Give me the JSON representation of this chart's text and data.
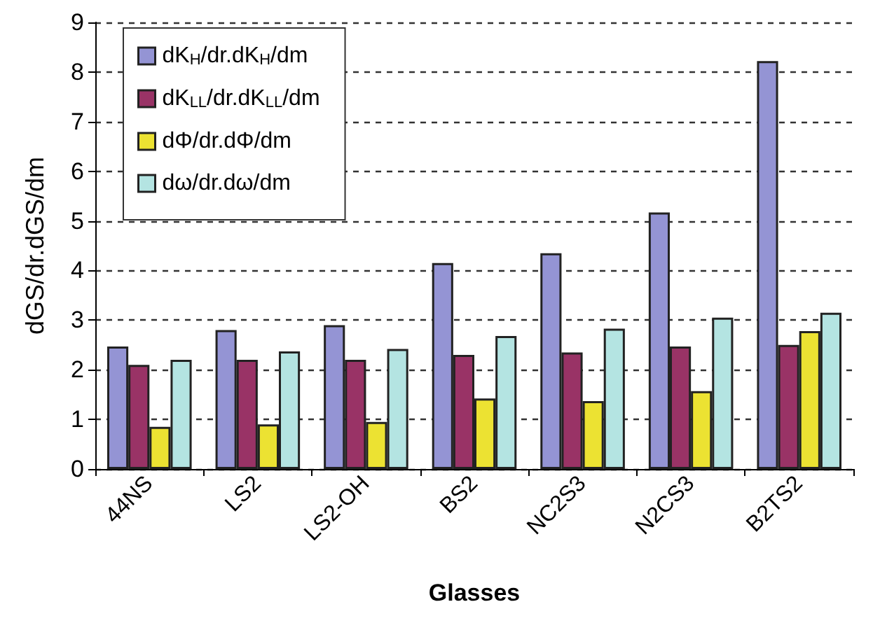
{
  "chart_data": {
    "type": "bar",
    "xlabel": "Glasses",
    "ylabel": "dGS/dr.dGS/dm",
    "categories": [
      "44NS",
      "LS2",
      "LS2-OH",
      "BS2",
      "NC2S3",
      "N2CS3",
      "B2TS2"
    ],
    "series": [
      {
        "name": "dK$_{H}$/dr.dK$_{H}$/dm",
        "color": "#9494d4",
        "values": [
          2.47,
          2.8,
          2.9,
          4.15,
          4.35,
          5.17,
          8.22
        ]
      },
      {
        "name": "dK$_{LL}$/dr.dK$_{LL}$/dm",
        "color": "#993366",
        "values": [
          2.1,
          2.2,
          2.2,
          2.3,
          2.35,
          2.47,
          2.5
        ]
      },
      {
        "name": "dΦ/dr.dΦ/dm",
        "color": "#ece232",
        "values": [
          0.85,
          0.9,
          0.95,
          1.42,
          1.37,
          1.57,
          2.78
        ]
      },
      {
        "name": "dω/dr.dω/dm",
        "color": "#b4e4e2",
        "values": [
          2.2,
          2.37,
          2.42,
          2.68,
          2.83,
          3.05,
          3.15
        ]
      }
    ],
    "ylim": [
      0,
      9
    ],
    "yticks": [
      0,
      1,
      2,
      3,
      4,
      5,
      6,
      7,
      8,
      9
    ],
    "grid": "y",
    "legend": "top left"
  }
}
